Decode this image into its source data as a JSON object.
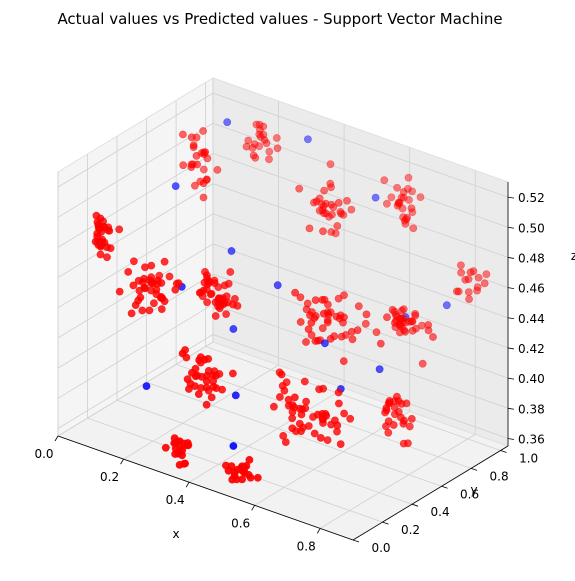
{
  "chart_data": {
    "type": "scatter",
    "projection": "3d",
    "title": "Actual values vs Predicted values - Support Vector Machine",
    "xlabel": "x",
    "ylabel": "y",
    "zlabel": "z",
    "xlim": [
      0.0,
      0.9
    ],
    "ylim": [
      0.0,
      1.05
    ],
    "zlim": [
      0.355,
      0.53
    ],
    "xticks": [
      "0.0",
      "0.2",
      "0.4",
      "0.6",
      "0.8"
    ],
    "yticks": [
      "0.0",
      "0.2",
      "0.4",
      "0.6",
      "0.8",
      "1.0"
    ],
    "zticks": [
      "0.36",
      "0.38",
      "0.40",
      "0.42",
      "0.44",
      "0.46",
      "0.48",
      "0.50",
      "0.52"
    ],
    "grid": true,
    "series": [
      {
        "color": "#0000ff",
        "points": [
          [
            0.08,
            0.62,
            0.49
          ],
          [
            0.12,
            0.88,
            0.52
          ],
          [
            0.33,
            0.96,
            0.52
          ],
          [
            0.55,
            0.93,
            0.5
          ],
          [
            0.22,
            0.35,
            0.45
          ],
          [
            0.4,
            0.6,
            0.45
          ],
          [
            0.31,
            0.5,
            0.42
          ],
          [
            0.58,
            0.52,
            0.43
          ],
          [
            0.7,
            0.8,
            0.44
          ],
          [
            0.79,
            0.88,
            0.45
          ],
          [
            0.18,
            0.2,
            0.39
          ],
          [
            0.43,
            0.25,
            0.4
          ],
          [
            0.72,
            0.58,
            0.42
          ],
          [
            0.66,
            0.45,
            0.41
          ],
          [
            0.49,
            0.1,
            0.38
          ],
          [
            0.25,
            0.62,
            0.46
          ]
        ]
      },
      {
        "color": "#ff0000",
        "clusters": [
          {
            "center": [
              0.0,
              0.3,
              0.47
            ],
            "spread": [
              0.04,
              0.04,
              0.01
            ],
            "n": 30
          },
          {
            "center": [
              0.15,
              0.3,
              0.45
            ],
            "spread": [
              0.05,
              0.05,
              0.01
            ],
            "n": 40
          },
          {
            "center": [
              0.3,
              0.4,
              0.45
            ],
            "spread": [
              0.05,
              0.05,
              0.012
            ],
            "n": 40
          },
          {
            "center": [
              0.1,
              0.75,
              0.5
            ],
            "spread": [
              0.04,
              0.05,
              0.012
            ],
            "n": 25
          },
          {
            "center": [
              0.2,
              0.95,
              0.51
            ],
            "spread": [
              0.04,
              0.04,
              0.01
            ],
            "n": 20
          },
          {
            "center": [
              0.45,
              0.85,
              0.49
            ],
            "spread": [
              0.05,
              0.06,
              0.012
            ],
            "n": 30
          },
          {
            "center": [
              0.62,
              0.95,
              0.5
            ],
            "spread": [
              0.04,
              0.05,
              0.01
            ],
            "n": 25
          },
          {
            "center": [
              0.55,
              0.6,
              0.44
            ],
            "spread": [
              0.06,
              0.06,
              0.012
            ],
            "n": 45
          },
          {
            "center": [
              0.72,
              0.75,
              0.44
            ],
            "spread": [
              0.05,
              0.06,
              0.012
            ],
            "n": 35
          },
          {
            "center": [
              0.85,
              0.9,
              0.47
            ],
            "spread": [
              0.03,
              0.03,
              0.008
            ],
            "n": 15
          },
          {
            "center": [
              0.35,
              0.2,
              0.41
            ],
            "spread": [
              0.05,
              0.05,
              0.012
            ],
            "n": 35
          },
          {
            "center": [
              0.6,
              0.3,
              0.4
            ],
            "spread": [
              0.06,
              0.05,
              0.012
            ],
            "n": 35
          },
          {
            "center": [
              0.8,
              0.5,
              0.4
            ],
            "spread": [
              0.04,
              0.05,
              0.01
            ],
            "n": 25
          },
          {
            "center": [
              0.35,
              0.05,
              0.37
            ],
            "spread": [
              0.03,
              0.03,
              0.008
            ],
            "n": 20
          },
          {
            "center": [
              0.55,
              0.05,
              0.37
            ],
            "spread": [
              0.04,
              0.03,
              0.008
            ],
            "n": 20
          },
          {
            "center": [
              0.7,
              0.3,
              0.4
            ],
            "spread": [
              0.04,
              0.04,
              0.01
            ],
            "n": 15
          }
        ]
      }
    ]
  }
}
